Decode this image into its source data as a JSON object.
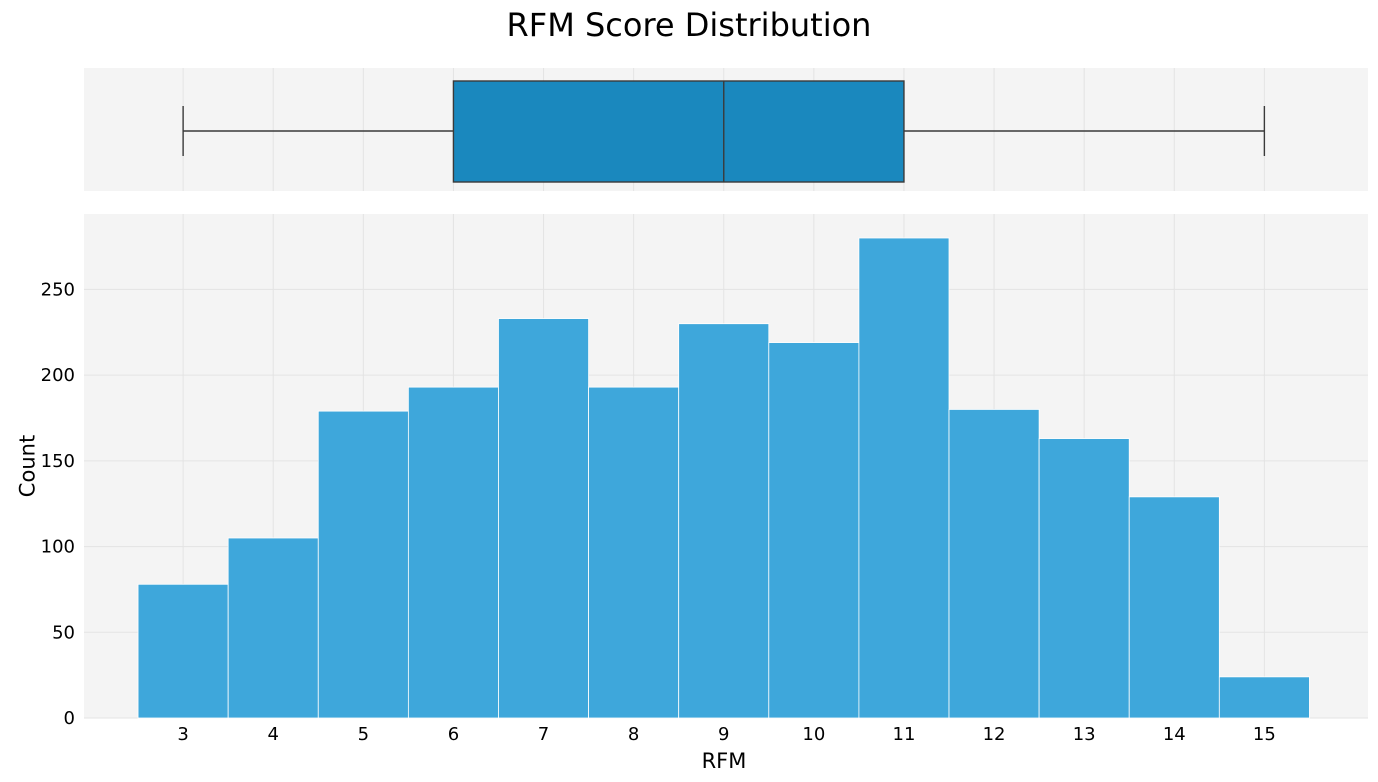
{
  "colors": {
    "plot_background": "#f4f4f4",
    "grid": "#e3e3e3",
    "box_fill": "#1a88be",
    "hist_fill": "#3ea7db",
    "line": "#3a3a3a"
  },
  "chart_data": [
    {
      "type": "box",
      "title": "RFM Score Distribution",
      "whisker_low": 3,
      "q1": 6,
      "median": 9,
      "q3": 11,
      "whisker_high": 15,
      "x_axis_shared": true,
      "grid": true
    },
    {
      "type": "bar",
      "xlabel": "RFM",
      "ylabel": "Count",
      "categories": [
        "3",
        "4",
        "5",
        "6",
        "7",
        "8",
        "9",
        "10",
        "11",
        "12",
        "13",
        "14",
        "15"
      ],
      "x": [
        3,
        4,
        5,
        6,
        7,
        8,
        9,
        10,
        11,
        12,
        13,
        14,
        15
      ],
      "values": [
        78,
        105,
        179,
        193,
        233,
        193,
        230,
        219,
        280,
        180,
        163,
        129,
        24
      ],
      "xlim": [
        1.9,
        16.15
      ],
      "ylim": [
        0,
        294
      ],
      "yticks": [
        0,
        50,
        100,
        150,
        200,
        250
      ],
      "grid": true
    }
  ]
}
